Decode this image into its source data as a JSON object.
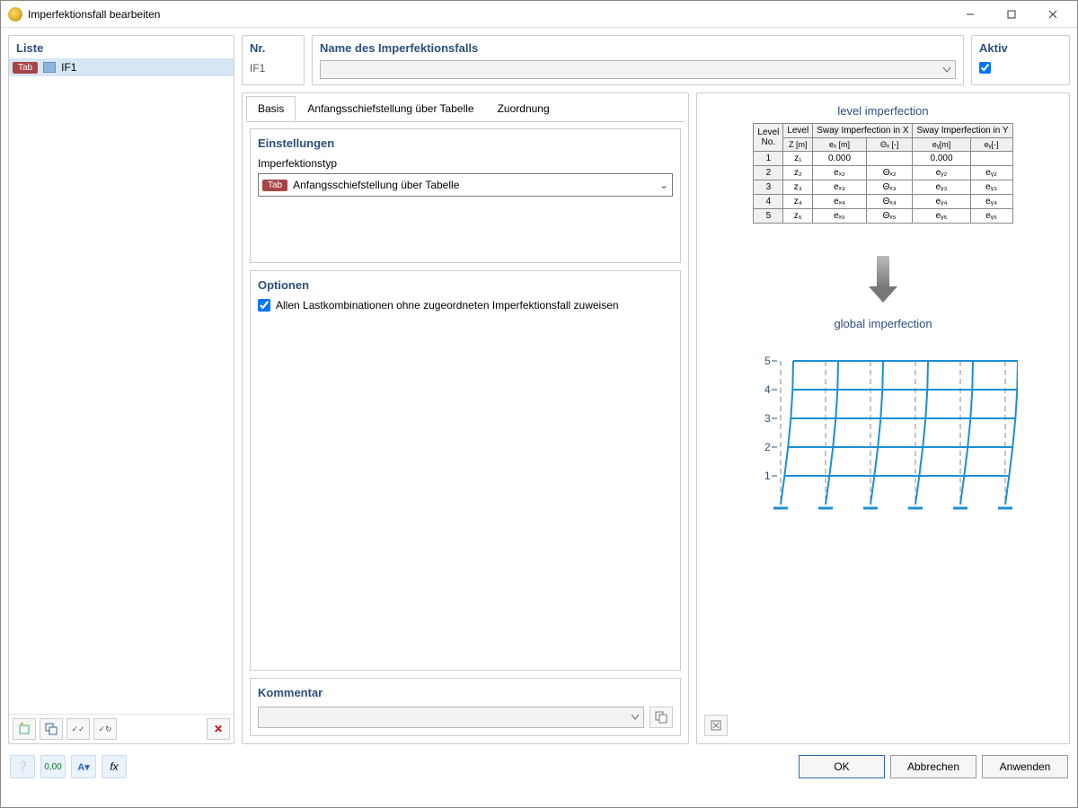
{
  "window": {
    "title": "Imperfektionsfall bearbeiten"
  },
  "liste": {
    "title": "Liste",
    "items": [
      {
        "tag": "Tab",
        "name": "IF1",
        "color": "#8fb5dd"
      }
    ]
  },
  "header": {
    "nr": {
      "label": "Nr.",
      "value": "IF1"
    },
    "name": {
      "label": "Name des Imperfektionsfalls",
      "value": ""
    },
    "aktiv": {
      "label": "Aktiv",
      "checked": true
    }
  },
  "tabs": {
    "basis": "Basis",
    "tabelle": "Anfangsschiefstellung über Tabelle",
    "zuordnung": "Zuordnung"
  },
  "einstellungen": {
    "title": "Einstellungen",
    "typ_label": "Imperfektionstyp",
    "typ_tag": "Tab",
    "typ_value": "Anfangsschiefstellung über Tabelle"
  },
  "optionen": {
    "title": "Optionen",
    "assign_all_label": "Allen Lastkombinationen ohne zugeordneten Imperfektionsfall zuweisen",
    "assign_all_checked": true
  },
  "kommentar": {
    "title": "Kommentar",
    "value": ""
  },
  "preview": {
    "level_title": "level imperfection",
    "global_title": "global imperfection",
    "table": {
      "head1": {
        "levelno": "Level\nNo.",
        "level": "Level",
        "swayx": "Sway Imperfection in X",
        "swayy": "Sway Imperfection in Y"
      },
      "head2": {
        "z": "Z [m]",
        "ex": "eₓ [m]",
        "thx": "Θₓ [-]",
        "ey": "eᵧ[m]",
        "thy": "eᵧ[-]"
      },
      "rows": [
        {
          "no": "1",
          "z": "z₁",
          "ex": "0.000",
          "thx": "",
          "ey": "0.000",
          "thy": ""
        },
        {
          "no": "2",
          "z": "z₂",
          "ex": "eₓ₂",
          "thx": "Θₓ₂",
          "ey": "eᵧ₂",
          "thy": "eᵧ₂"
        },
        {
          "no": "3",
          "z": "z₃",
          "ex": "eₓ₃",
          "thx": "Θₓ₃",
          "ey": "eᵧ₃",
          "thy": "eᵧ₃"
        },
        {
          "no": "4",
          "z": "z₄",
          "ex": "eₓ₄",
          "thx": "Θₓ₄",
          "ey": "eᵧ₄",
          "thy": "eᵧ₄"
        },
        {
          "no": "5",
          "z": "z₅",
          "ex": "eₓ₅",
          "thx": "Θₓ₅",
          "ey": "eᵧ₅",
          "thy": "eᵧ₅"
        }
      ]
    },
    "diagram": {
      "color": "#1b8fd4",
      "levels": [
        "1",
        "2",
        "3",
        "4",
        "5"
      ]
    }
  },
  "footer": {
    "ok": "OK",
    "cancel": "Abbrechen",
    "apply": "Anwenden"
  }
}
